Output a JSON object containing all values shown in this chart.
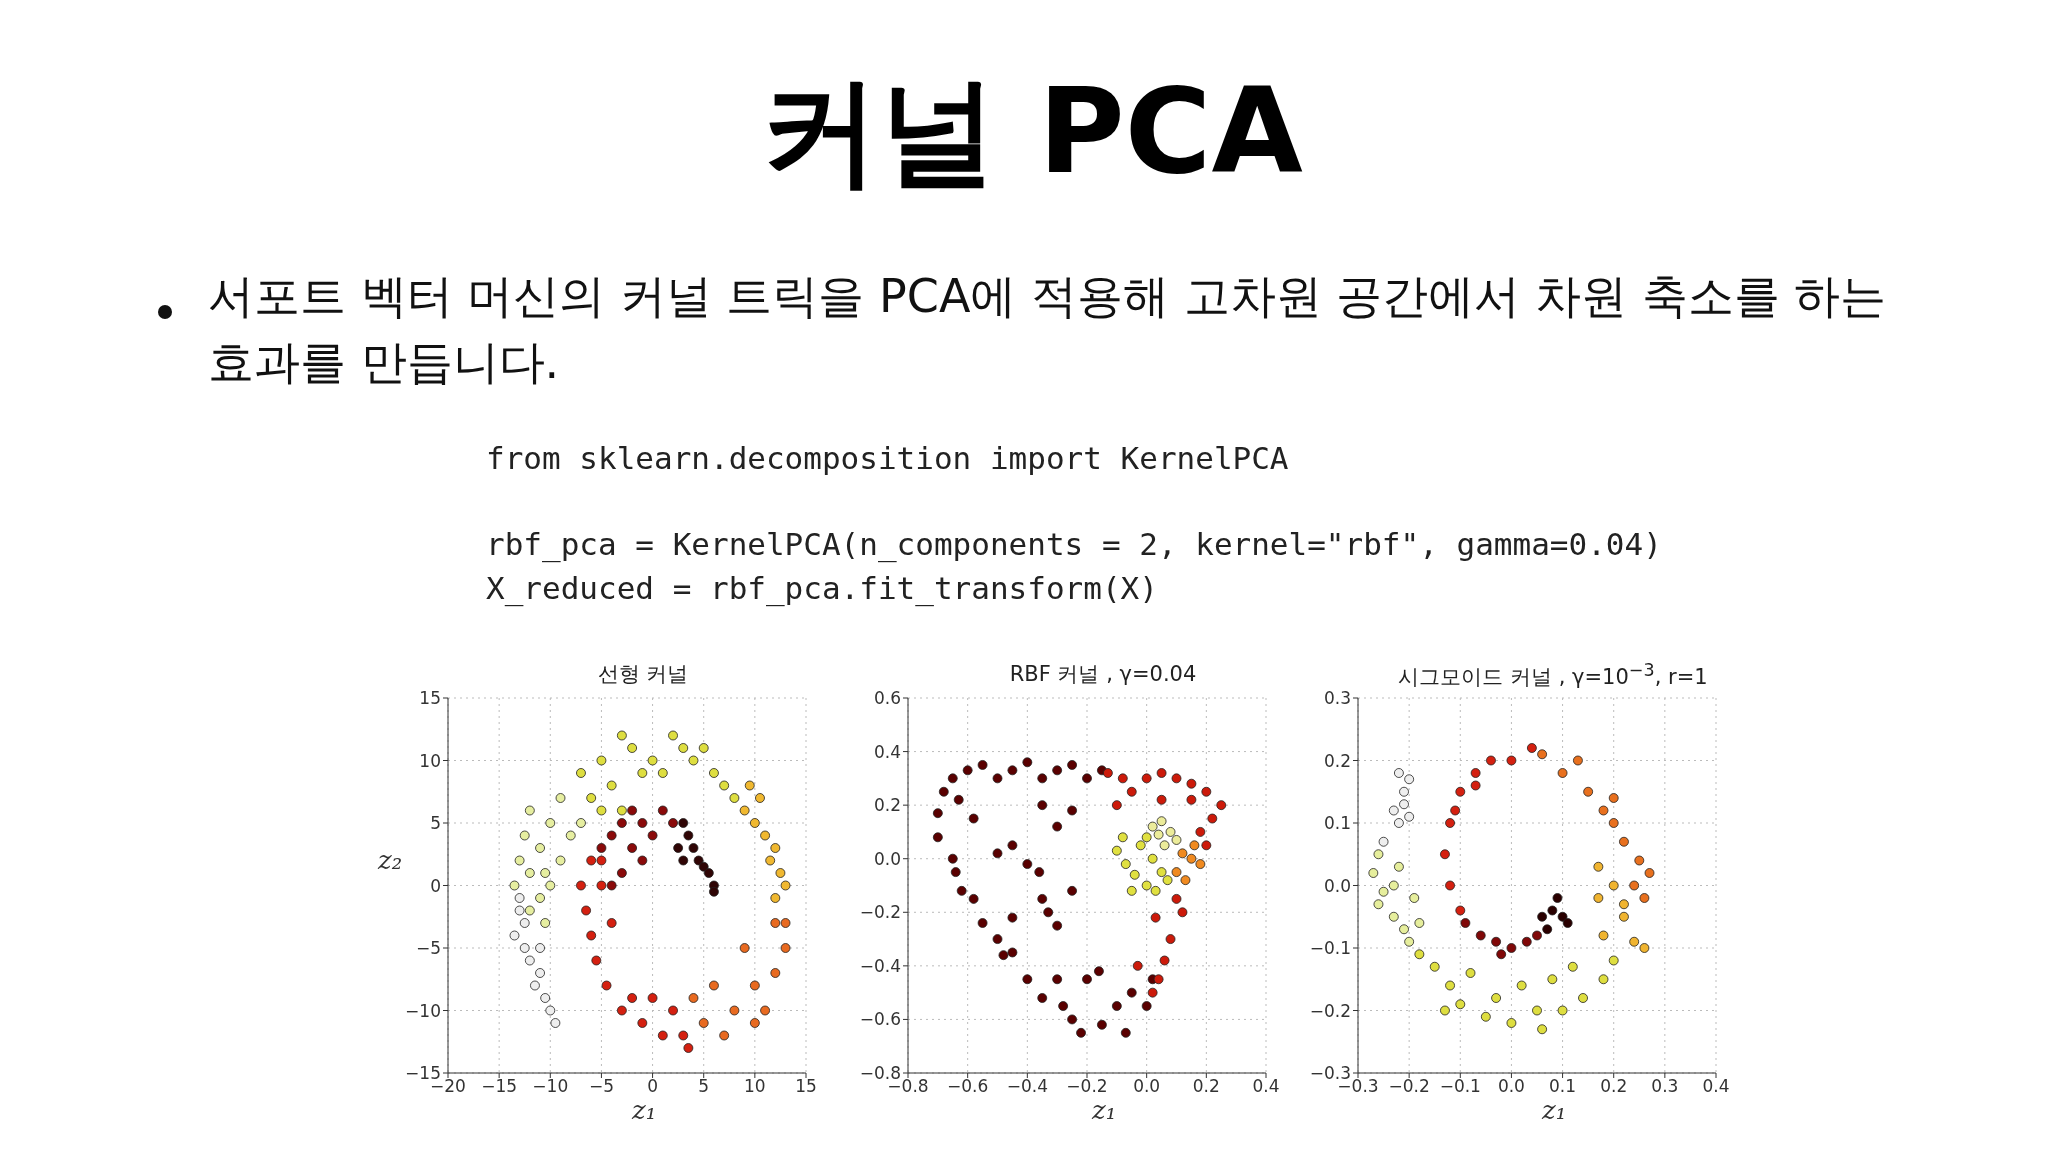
{
  "chart_data": [
    {
      "type": "other",
      "title": "커널 PCA",
      "annotations": [
        "서포트 벡터 머신의 커널 트릭을 PCA에 적용해 고차원 공간에서 차원 축소를 하는 효과를 만듭니다.",
        "from sklearn.decomposition import KernelPCA",
        "rbf_pca = KernelPCA(n_components = 2, kernel=\"rbf\", gamma=0.04)",
        "X_reduced = rbf_pca.fit_transform(X)"
      ]
    },
    {
      "type": "scatter",
      "title": "선형 커널",
      "xlabel": "z₁",
      "ylabel": "z₂",
      "grid": true,
      "marker": "circle",
      "xlim": [
        -20,
        15
      ],
      "ylim": [
        -15,
        15
      ],
      "xticks": [
        {
          "value": -20,
          "label": "−20"
        },
        {
          "value": -15,
          "label": "−15"
        },
        {
          "value": -10,
          "label": "−10"
        },
        {
          "value": -5,
          "label": "−5"
        },
        0,
        5,
        10,
        15
      ],
      "yticks": [
        {
          "value": -15,
          "label": "−15"
        },
        {
          "value": -10,
          "label": "−10"
        },
        {
          "value": -5,
          "label": "−5"
        },
        0,
        5,
        10,
        15
      ],
      "series": [
        {
          "color": "#eeeeee",
          "x": [
            -13,
            -13.5,
            -12.5,
            -12,
            -11,
            -11.5,
            -10.5,
            -10,
            -9.5,
            -12.5,
            -11,
            -13
          ],
          "values": [
            -2,
            -4,
            -5,
            -6,
            -7,
            -8,
            -9,
            -10,
            -11,
            -3,
            -5,
            -1
          ]
        },
        {
          "color": "#e6eea0",
          "x": [
            -13.5,
            -13,
            -12.5,
            -12,
            -11,
            -10.5,
            -10,
            -11,
            -12,
            -9,
            -10,
            -9,
            -7,
            -8,
            -10.5,
            -12
          ],
          "values": [
            0,
            2,
            4,
            6,
            3,
            1,
            0,
            -1,
            -2,
            2,
            5,
            7,
            5,
            4,
            -3,
            1
          ]
        },
        {
          "color": "#dede40",
          "x": [
            -7,
            -5,
            -3,
            -2,
            0,
            2,
            3,
            4,
            6,
            -4,
            -1,
            -6,
            1,
            5,
            7,
            8,
            -3,
            -5
          ],
          "values": [
            9,
            10,
            12,
            11,
            10,
            12,
            11,
            10,
            9,
            8,
            9,
            7,
            9,
            11,
            8,
            7,
            6,
            6
          ]
        },
        {
          "color": "#f0b830",
          "x": [
            9,
            10,
            11,
            12,
            12.5,
            13,
            12,
            11.5,
            10.5,
            9.5
          ],
          "values": [
            6,
            5,
            4,
            3,
            1,
            0,
            -1,
            2,
            7,
            8
          ]
        },
        {
          "color": "#e86a20",
          "x": [
            12,
            13,
            12,
            10,
            9,
            11,
            8,
            6,
            7,
            5,
            4,
            10,
            13
          ],
          "values": [
            -3,
            -5,
            -7,
            -8,
            -5,
            -10,
            -10,
            -8,
            -12,
            -11,
            -9,
            -11,
            -3
          ]
        },
        {
          "color": "#d42010",
          "x": [
            -6,
            -7,
            -6.5,
            -6,
            -5.5,
            -4.5,
            -3,
            -1,
            1,
            3,
            3.5,
            2,
            -5,
            -4,
            -2,
            0,
            -5
          ],
          "values": [
            2,
            0,
            -2,
            -4,
            -6,
            -8,
            -10,
            -11,
            -12,
            -12,
            -13,
            -10,
            0,
            -3,
            -9,
            -9,
            2
          ]
        },
        {
          "color": "#8a0a0a",
          "x": [
            -4,
            -3,
            -2,
            -1,
            0,
            1,
            -2,
            -3,
            -1,
            2,
            -5,
            -4
          ],
          "values": [
            4,
            5,
            6,
            5,
            4,
            6,
            3,
            1,
            2,
            5,
            3,
            0
          ]
        },
        {
          "color": "#300505",
          "x": [
            3,
            3.5,
            4,
            4.5,
            5,
            5.5,
            6,
            6,
            2.5,
            3
          ],
          "values": [
            5,
            4,
            3,
            2,
            1.5,
            1,
            0,
            -0.5,
            3,
            2
          ]
        }
      ]
    },
    {
      "type": "scatter",
      "title": "RBF 커널 , γ=0.04",
      "xlabel": "z₁",
      "grid": true,
      "marker": "circle",
      "xlim": [
        -0.8,
        0.4
      ],
      "ylim": [
        -0.8,
        0.6
      ],
      "xticks": [
        {
          "value": -0.8,
          "label": "−0.8"
        },
        {
          "value": -0.6,
          "label": "−0.6"
        },
        {
          "value": -0.4,
          "label": "−0.4"
        },
        {
          "value": -0.2,
          "label": "−0.2"
        },
        {
          "value": 0,
          "label": "0.0"
        },
        0.2,
        0.4
      ],
      "yticks": [
        {
          "value": -0.8,
          "label": "−0.8"
        },
        {
          "value": -0.6,
          "label": "−0.6"
        },
        {
          "value": -0.4,
          "label": "−0.4"
        },
        {
          "value": -0.2,
          "label": "−0.2"
        },
        {
          "value": 0,
          "label": "0.0"
        },
        0.2,
        0.4,
        0.6
      ],
      "series": [
        {
          "color": "#5a0000",
          "x": [
            -0.7,
            -0.68,
            -0.65,
            -0.6,
            -0.55,
            -0.5,
            -0.45,
            -0.4,
            -0.35,
            -0.3,
            -0.25,
            -0.2,
            -0.15,
            -0.63,
            -0.58,
            -0.7,
            -0.65,
            -0.64,
            -0.62,
            -0.58,
            -0.55,
            -0.5,
            -0.48,
            -0.45,
            -0.4,
            -0.35,
            -0.3,
            -0.28,
            -0.25,
            -0.22,
            -0.15,
            -0.1,
            -0.07,
            -0.05,
            0,
            0.02,
            -0.35,
            -0.33,
            -0.3,
            -0.25,
            -0.45,
            -0.4,
            -0.36,
            -0.3,
            -0.35,
            -0.25,
            -0.5,
            -0.45,
            -0.2,
            -0.16
          ],
          "values": [
            0.17,
            0.25,
            0.3,
            0.33,
            0.35,
            0.3,
            0.33,
            0.36,
            0.3,
            0.33,
            0.35,
            0.3,
            0.33,
            0.22,
            0.15,
            0.08,
            0,
            -0.05,
            -0.12,
            -0.15,
            -0.24,
            -0.3,
            -0.36,
            -0.35,
            -0.45,
            -0.52,
            -0.45,
            -0.55,
            -0.6,
            -0.65,
            -0.62,
            -0.55,
            -0.65,
            -0.5,
            -0.55,
            -0.45,
            -0.15,
            -0.2,
            -0.25,
            -0.12,
            0.05,
            -0.02,
            -0.05,
            0.12,
            0.2,
            0.18,
            0.02,
            -0.22,
            -0.45,
            -0.42
          ]
        },
        {
          "color": "#cc1a0a",
          "x": [
            0,
            0.05,
            0.1,
            0.15,
            0.2,
            0.25,
            0.22,
            0.18,
            0.2,
            0.15,
            0.05,
            -0.05,
            -0.08,
            0.1,
            0.12,
            0.08,
            0.06,
            0.04,
            0.02,
            -0.03,
            0.03,
            -0.1,
            -0.13
          ],
          "values": [
            0.3,
            0.32,
            0.3,
            0.28,
            0.25,
            0.2,
            0.15,
            0.1,
            0.05,
            0.22,
            0.22,
            0.25,
            0.3,
            -0.15,
            -0.2,
            -0.3,
            -0.38,
            -0.45,
            -0.5,
            -0.4,
            -0.22,
            0.2,
            0.32
          ]
        },
        {
          "color": "#f08a20",
          "x": [
            0.15,
            0.18,
            0.12,
            0.1,
            0.16,
            0.13
          ],
          "values": [
            0,
            -0.02,
            0.02,
            -0.05,
            0.05,
            -0.08
          ]
        },
        {
          "color": "#e0e040",
          "x": [
            -0.08,
            -0.1,
            -0.07,
            -0.04,
            0,
            0.03,
            -0.02,
            0.02,
            0.05,
            0.07,
            0,
            -0.05
          ],
          "values": [
            0.08,
            0.03,
            -0.02,
            -0.06,
            -0.1,
            -0.12,
            0.05,
            0,
            -0.05,
            -0.08,
            0.08,
            -0.12
          ]
        },
        {
          "color": "#ecec9a",
          "x": [
            0.02,
            0.05,
            0.08,
            0.1,
            0.06,
            0.04
          ],
          "values": [
            0.12,
            0.14,
            0.1,
            0.07,
            0.05,
            0.09
          ]
        }
      ]
    },
    {
      "type": "scatter",
      "title": "시그모이드 커널 , γ=10$^{−3}$, r=1",
      "xlabel": "z₁",
      "grid": true,
      "marker": "circle",
      "xlim": [
        -0.3,
        0.4
      ],
      "ylim": [
        -0.3,
        0.3
      ],
      "xticks": [
        {
          "value": -0.3,
          "label": "−0.3"
        },
        {
          "value": -0.2,
          "label": "−0.2"
        },
        {
          "value": -0.1,
          "label": "−0.1"
        },
        {
          "value": 0,
          "label": "0.0"
        },
        0.1,
        0.2,
        0.3,
        0.4
      ],
      "yticks": [
        {
          "value": -0.3,
          "label": "−0.3"
        },
        {
          "value": -0.2,
          "label": "−0.2"
        },
        {
          "value": -0.1,
          "label": "−0.1"
        },
        {
          "value": 0,
          "label": "0.0"
        },
        0.1,
        0.2,
        0.3
      ],
      "series": [
        {
          "color": "#eeeeee",
          "x": [
            -0.22,
            -0.2,
            -0.21,
            -0.23,
            -0.22,
            -0.25,
            -0.2,
            -0.21
          ],
          "values": [
            0.18,
            0.17,
            0.15,
            0.12,
            0.1,
            0.07,
            0.11,
            0.13
          ]
        },
        {
          "color": "#e6ee9c",
          "x": [
            -0.26,
            -0.27,
            -0.25,
            -0.26,
            -0.23,
            -0.21,
            -0.19,
            -0.22,
            -0.2,
            -0.18,
            -0.23
          ],
          "values": [
            0.05,
            0.02,
            -0.01,
            -0.03,
            -0.05,
            -0.07,
            -0.02,
            0.03,
            -0.09,
            -0.06,
            0
          ]
        },
        {
          "color": "#dede40",
          "x": [
            -0.18,
            -0.15,
            -0.12,
            -0.1,
            -0.05,
            0,
            0.05,
            0.1,
            0.14,
            0.18,
            0.2,
            -0.08,
            0.02,
            0.08,
            0.12,
            -0.03,
            0.06,
            -0.13
          ],
          "values": [
            -0.11,
            -0.13,
            -0.16,
            -0.19,
            -0.21,
            -0.22,
            -0.2,
            -0.2,
            -0.18,
            -0.15,
            -0.12,
            -0.14,
            -0.16,
            -0.15,
            -0.13,
            -0.18,
            -0.23,
            -0.2
          ]
        },
        {
          "color": "#f0b430",
          "x": [
            0.18,
            0.22,
            0.17,
            0.2,
            0.24,
            0.26,
            0.17,
            0.22
          ],
          "values": [
            -0.08,
            -0.05,
            -0.02,
            0,
            -0.09,
            -0.1,
            0.03,
            -0.03
          ]
        },
        {
          "color": "#e8701e",
          "x": [
            0.15,
            0.18,
            0.2,
            0.22,
            0.25,
            0.27,
            0.24,
            0.1,
            0.13,
            0.06,
            0.2,
            0.26
          ],
          "values": [
            0.15,
            0.12,
            0.1,
            0.07,
            0.04,
            0.02,
            0,
            0.18,
            0.2,
            0.21,
            0.14,
            -0.02
          ]
        },
        {
          "color": "#d42010",
          "x": [
            0.04,
            0,
            -0.04,
            -0.07,
            -0.1,
            -0.12,
            -0.13,
            -0.12,
            -0.1,
            -0.07,
            -0.11
          ],
          "values": [
            0.22,
            0.2,
            0.2,
            0.18,
            0.15,
            0.1,
            0.05,
            0,
            -0.04,
            0.16,
            0.12
          ]
        },
        {
          "color": "#800808",
          "x": [
            -0.09,
            -0.06,
            -0.03,
            0,
            0.03,
            0.05,
            -0.02
          ],
          "values": [
            -0.06,
            -0.08,
            -0.09,
            -0.1,
            -0.09,
            -0.08,
            -0.11
          ]
        },
        {
          "color": "#2a0000",
          "x": [
            0.06,
            0.08,
            0.1,
            0.11,
            0.07,
            0.09
          ],
          "values": [
            -0.05,
            -0.04,
            -0.05,
            -0.06,
            -0.07,
            -0.02
          ]
        }
      ]
    }
  ]
}
